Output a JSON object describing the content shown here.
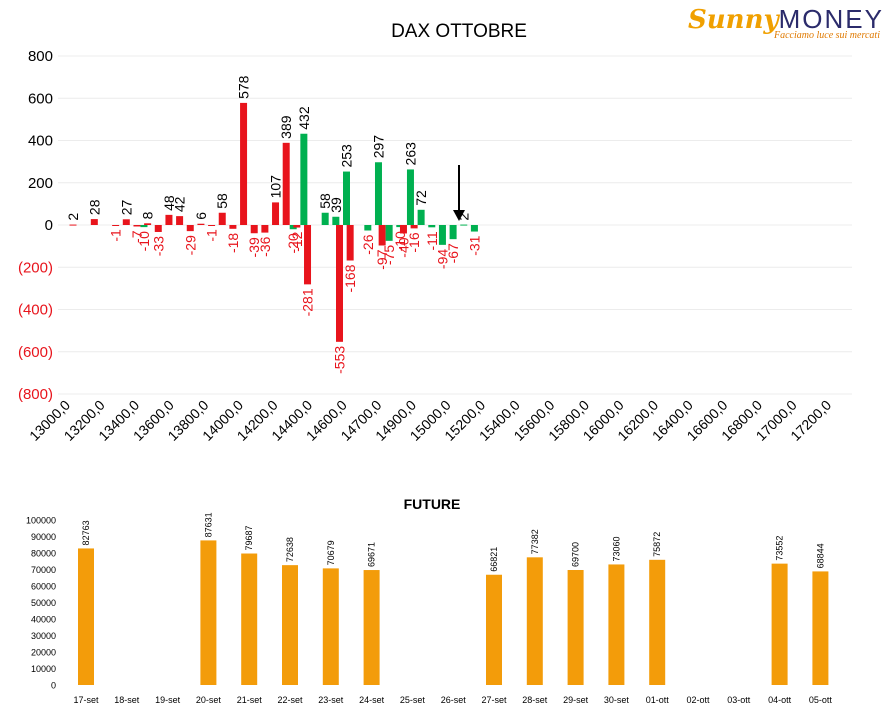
{
  "logo": {
    "word1": "Sunny",
    "word2": "MONEY",
    "tagline": "Facciamo luce sui mercati"
  },
  "chart_data": [
    {
      "type": "bar",
      "title": "DAX OTTOBRE",
      "ylim": [
        -800,
        800
      ],
      "yticks": [
        "800",
        "600",
        "400",
        "200",
        "0",
        "(200)",
        "(400)",
        "(600)",
        "(800)"
      ],
      "grid": true,
      "x_tick_labels": [
        "13000,0",
        "13200,0",
        "13400,0",
        "13600,0",
        "13800,0",
        "14000,0",
        "14200,0",
        "14400,0",
        "14600,0",
        "14700,0",
        "14900,0",
        "15000,0",
        "15200,0",
        "15400,0",
        "15600,0",
        "15800,0",
        "16000,0",
        "16200,0",
        "16400,0",
        "16600,0",
        "16800,0",
        "17000,0",
        "17200,0"
      ],
      "colors": {
        "red": "#e8141c",
        "green": "#00b050",
        "pos_label": "#000000",
        "neg_label": "#e8141c"
      },
      "series": [
        {
          "values": [
            2,
            0,
            28,
            0,
            -1,
            27,
            -7,
            8,
            -33,
            48,
            42,
            -29,
            6,
            -1,
            58,
            -18,
            578,
            -39,
            -36,
            107,
            389,
            -12,
            -281,
            0,
            0,
            -553,
            -168,
            0,
            0,
            -97,
            0,
            -40,
            -16,
            0,
            0,
            0,
            0,
            0,
            0,
            0
          ]
        },
        {
          "values": [
            0,
            0,
            0,
            0,
            0,
            0,
            -10,
            0,
            0,
            0,
            0,
            0,
            0,
            0,
            0,
            0,
            0,
            0,
            0,
            0,
            -20,
            432,
            0,
            58,
            39,
            253,
            0,
            -26,
            297,
            -75,
            -10,
            263,
            72,
            -11,
            -94,
            -67,
            2,
            -31,
            0,
            0
          ]
        }
      ],
      "annotation": "arrow-down"
    },
    {
      "type": "bar",
      "title": "FUTURE",
      "ylim": [
        0,
        100000
      ],
      "yticks": [
        0,
        10000,
        20000,
        30000,
        40000,
        50000,
        60000,
        70000,
        80000,
        90000,
        100000
      ],
      "grid": false,
      "colors": {
        "bar": "#f39c0a"
      },
      "categories": [
        "17-set",
        "18-set",
        "19-set",
        "20-set",
        "21-set",
        "22-set",
        "23-set",
        "24-set",
        "25-set",
        "26-set",
        "27-set",
        "28-set",
        "29-set",
        "30-set",
        "01-ott",
        "02-ott",
        "03-ott",
        "04-ott",
        "05-ott"
      ],
      "values": [
        82763,
        null,
        null,
        87631,
        79687,
        72638,
        70679,
        69671,
        null,
        null,
        66821,
        77382,
        69700,
        73060,
        75872,
        null,
        null,
        73552,
        68844
      ]
    }
  ]
}
